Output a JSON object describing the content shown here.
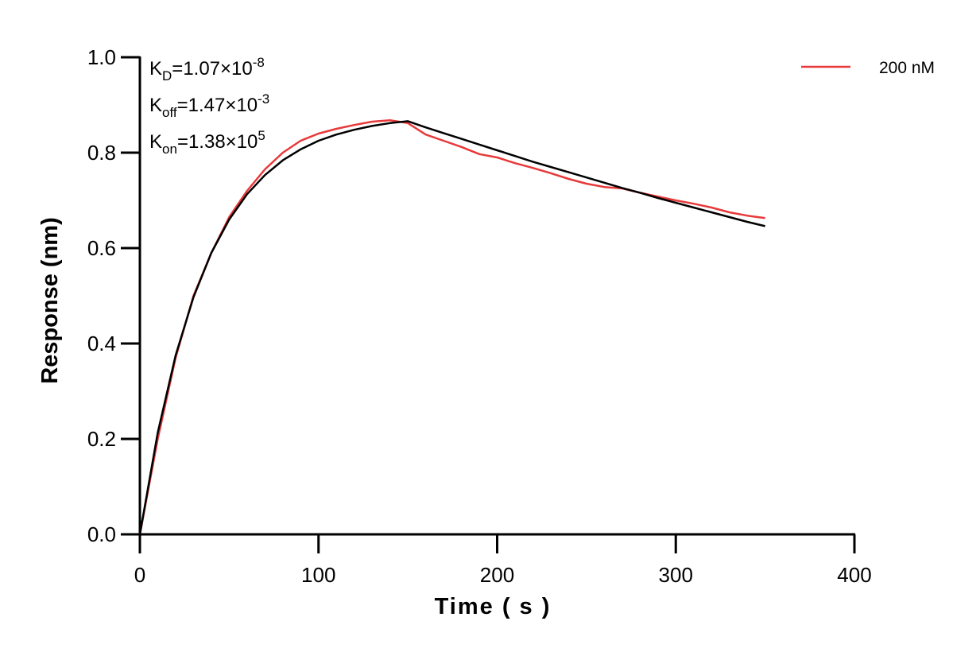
{
  "chart_data": {
    "type": "line",
    "xlabel": "Time ( s )",
    "ylabel": "Response (nm)",
    "annotations": [
      {
        "symbol": "K",
        "subscript": "D",
        "text": "=1.07×10",
        "exponent": "-8"
      },
      {
        "symbol": "K",
        "subscript": "off",
        "text": "=1.47×10",
        "exponent": "-3"
      },
      {
        "symbol": "K",
        "subscript": "on",
        "text": "=1.38×10",
        "exponent": "5"
      }
    ],
    "x": [
      0,
      10,
      20,
      30,
      40,
      50,
      60,
      70,
      80,
      90,
      100,
      110,
      120,
      130,
      140,
      150,
      160,
      170,
      180,
      190,
      200,
      210,
      220,
      230,
      240,
      250,
      260,
      270,
      280,
      290,
      300,
      310,
      320,
      330,
      340,
      350
    ],
    "series": [
      {
        "name": "200 nM",
        "color": "#e8393a",
        "values": [
          0,
          0.2,
          0.37,
          0.5,
          0.59,
          0.665,
          0.72,
          0.765,
          0.8,
          0.825,
          0.84,
          0.85,
          0.858,
          0.865,
          0.868,
          0.862,
          0.838,
          0.825,
          0.812,
          0.797,
          0.79,
          0.778,
          0.768,
          0.757,
          0.745,
          0.735,
          0.728,
          0.725,
          0.716,
          0.708,
          0.7,
          0.693,
          0.685,
          0.675,
          0.668,
          0.663
        ]
      },
      {
        "color": "#000000",
        "values": [
          0,
          0.213,
          0.375,
          0.497,
          0.59,
          0.66,
          0.713,
          0.753,
          0.784,
          0.807,
          0.825,
          0.838,
          0.848,
          0.856,
          0.862,
          0.866,
          0.853,
          0.841,
          0.829,
          0.817,
          0.805,
          0.793,
          0.781,
          0.77,
          0.759,
          0.748,
          0.737,
          0.726,
          0.716,
          0.705,
          0.695,
          0.685,
          0.675,
          0.665,
          0.655,
          0.646
        ]
      }
    ],
    "xlim": [
      0,
      400
    ],
    "xticks": [
      0,
      100,
      200,
      300,
      400
    ],
    "ylim": [
      0,
      1.0
    ],
    "yticks": [
      {
        "value": 0,
        "label": "0.0"
      },
      {
        "value": 0.2,
        "label": "0.2"
      },
      {
        "value": 0.4,
        "label": "0.4"
      },
      {
        "value": 0.6,
        "label": "0.6"
      },
      {
        "value": 0.8,
        "label": "0.8"
      },
      {
        "value": 1.0,
        "label": "1.0"
      }
    ],
    "legend": "top-right",
    "grid": false
  }
}
